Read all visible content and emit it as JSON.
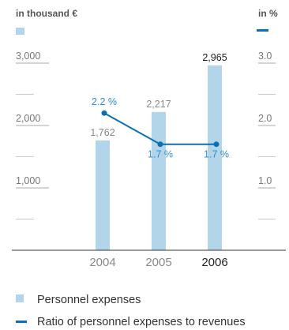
{
  "chart_data": {
    "type": "bar",
    "categories": [
      "2004",
      "2005",
      "2006"
    ],
    "highlight_category": "2006",
    "left_axis": {
      "label": "in thousand €",
      "ticks": [
        "3,000",
        "2,000",
        "1,000"
      ],
      "ylim": [
        0,
        3000
      ]
    },
    "right_axis": {
      "label": "in %",
      "ticks": [
        "3.0",
        "2.0",
        "1.0"
      ],
      "ylim": [
        0,
        3.0
      ]
    },
    "series": [
      {
        "name": "Personnel expenses",
        "kind": "bar",
        "axis": "left",
        "values": [
          1762,
          2217,
          2965
        ],
        "labels": [
          "1,762",
          "2,217",
          "2,965"
        ],
        "color": "#b3d5e9"
      },
      {
        "name": "Ratio of personnel expenses to revenues",
        "kind": "line",
        "axis": "right",
        "values": [
          2.2,
          1.7,
          1.7
        ],
        "labels": [
          "2.2 %",
          "1.7 %",
          "1.7 %"
        ],
        "color": "#0a70b5"
      }
    ],
    "grid": "short dashes at half steps",
    "legend_position": "bottom-left"
  }
}
